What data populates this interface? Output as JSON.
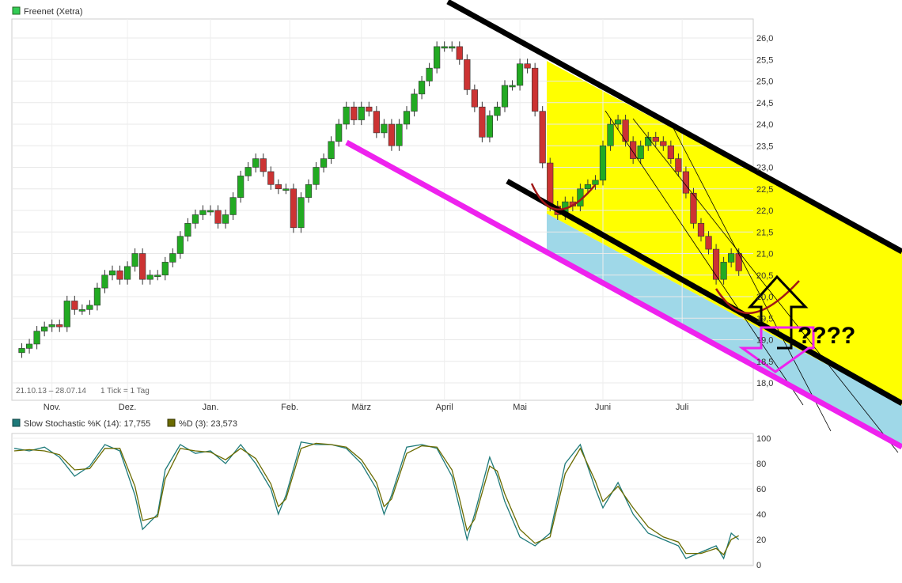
{
  "chart_data": [
    {
      "type": "candlestick",
      "title": "Freenet (Xetra)",
      "date_range": "21.10.13 – 28.07.14",
      "interval": "1 Tick = 1 Tag",
      "ylim": [
        17.85,
        26.3
      ],
      "y_ticks": [
        "26,0",
        "25,5",
        "25,0",
        "24,5",
        "24,0",
        "23,5",
        "23,0",
        "22,5",
        "22,0",
        "21,5",
        "21,0",
        "20,5",
        "20,0",
        "19,5",
        "19,0",
        "18,5",
        "18,0"
      ],
      "x_ticks": [
        {
          "label": "Nov.",
          "x": 10
        },
        {
          "label": "Dez.",
          "x": 30
        },
        {
          "label": "Jan.",
          "x": 52
        },
        {
          "label": "Feb.",
          "x": 73
        },
        {
          "label": "März",
          "x": 92
        },
        {
          "label": "April",
          "x": 114
        },
        {
          "label": "Mai",
          "x": 134
        },
        {
          "label": "Juni",
          "x": 156
        },
        {
          "label": "Juli",
          "x": 177
        }
      ],
      "x_range": [
        0,
        195
      ],
      "close_path": [
        [
          0,
          18.7
        ],
        [
          2,
          18.8
        ],
        [
          4,
          18.9
        ],
        [
          6,
          19.2
        ],
        [
          8,
          19.3
        ],
        [
          10,
          19.35
        ],
        [
          12,
          19.3
        ],
        [
          14,
          19.9
        ],
        [
          16,
          19.7
        ],
        [
          18,
          19.7
        ],
        [
          20,
          19.8
        ],
        [
          22,
          20.2
        ],
        [
          24,
          20.5
        ],
        [
          26,
          20.6
        ],
        [
          28,
          20.4
        ],
        [
          30,
          20.7
        ],
        [
          32,
          21.0
        ],
        [
          34,
          20.4
        ],
        [
          36,
          20.5
        ],
        [
          38,
          20.5
        ],
        [
          40,
          20.8
        ],
        [
          42,
          21.0
        ],
        [
          44,
          21.4
        ],
        [
          46,
          21.7
        ],
        [
          48,
          21.9
        ],
        [
          50,
          22.0
        ],
        [
          52,
          22.0
        ],
        [
          54,
          21.7
        ],
        [
          56,
          21.9
        ],
        [
          58,
          22.3
        ],
        [
          60,
          22.8
        ],
        [
          62,
          23.0
        ],
        [
          64,
          23.2
        ],
        [
          66,
          22.9
        ],
        [
          68,
          22.6
        ],
        [
          70,
          22.5
        ],
        [
          72,
          22.5
        ],
        [
          74,
          21.6
        ],
        [
          76,
          22.3
        ],
        [
          78,
          22.6
        ],
        [
          80,
          23.0
        ],
        [
          82,
          23.2
        ],
        [
          84,
          23.6
        ],
        [
          86,
          24.0
        ],
        [
          88,
          24.4
        ],
        [
          90,
          24.1
        ],
        [
          92,
          24.4
        ],
        [
          94,
          24.3
        ],
        [
          96,
          23.8
        ],
        [
          98,
          24.0
        ],
        [
          100,
          23.5
        ],
        [
          102,
          24.0
        ],
        [
          104,
          24.3
        ],
        [
          106,
          24.7
        ],
        [
          108,
          25.0
        ],
        [
          110,
          25.3
        ],
        [
          112,
          25.8
        ],
        [
          114,
          25.8
        ],
        [
          116,
          25.8
        ],
        [
          118,
          25.5
        ],
        [
          120,
          24.8
        ],
        [
          122,
          24.4
        ],
        [
          124,
          23.7
        ],
        [
          126,
          24.2
        ],
        [
          128,
          24.4
        ],
        [
          130,
          24.9
        ],
        [
          132,
          24.9
        ],
        [
          134,
          25.4
        ],
        [
          136,
          25.3
        ],
        [
          138,
          24.3
        ],
        [
          140,
          23.1
        ],
        [
          142,
          22.1
        ],
        [
          144,
          21.9
        ],
        [
          146,
          22.2
        ],
        [
          148,
          22.1
        ],
        [
          150,
          22.5
        ],
        [
          152,
          22.6
        ],
        [
          154,
          22.7
        ],
        [
          156,
          23.5
        ],
        [
          158,
          24.0
        ],
        [
          160,
          24.1
        ],
        [
          162,
          23.6
        ],
        [
          164,
          23.2
        ],
        [
          166,
          23.5
        ],
        [
          168,
          23.7
        ],
        [
          170,
          23.6
        ],
        [
          172,
          23.5
        ],
        [
          174,
          23.2
        ],
        [
          176,
          22.9
        ],
        [
          178,
          22.4
        ],
        [
          180,
          21.7
        ],
        [
          182,
          21.4
        ],
        [
          184,
          21.1
        ],
        [
          186,
          20.4
        ],
        [
          188,
          20.8
        ],
        [
          190,
          21.0
        ],
        [
          192,
          20.6
        ]
      ],
      "channel_zone_yellow": {
        "x_start": 138,
        "color": "#ffff00"
      },
      "channel_zone_blue": {
        "x_start": 138,
        "color": "#9fd8e8"
      },
      "annotations": {
        "question_text": "????"
      },
      "colors": {
        "up": "#22aa22",
        "down": "#cc3333",
        "trend_black": "#000000",
        "trend_magenta": "#ee22ee",
        "arc": "#a01818"
      }
    },
    {
      "type": "line",
      "title": "Slow Stochastic",
      "ylim": [
        0,
        100
      ],
      "y_ticks": [
        "100",
        "80",
        "60",
        "40",
        "20",
        "0"
      ],
      "series": [
        {
          "name": "Slow Stochastic %K (14): 17,755",
          "color": "#1e7a7a",
          "values": [
            [
              0,
              92
            ],
            [
              4,
              90
            ],
            [
              8,
              93
            ],
            [
              12,
              85
            ],
            [
              16,
              70
            ],
            [
              20,
              78
            ],
            [
              24,
              95
            ],
            [
              28,
              90
            ],
            [
              32,
              55
            ],
            [
              34,
              28
            ],
            [
              38,
              40
            ],
            [
              40,
              75
            ],
            [
              44,
              95
            ],
            [
              48,
              88
            ],
            [
              52,
              90
            ],
            [
              56,
              80
            ],
            [
              60,
              95
            ],
            [
              64,
              80
            ],
            [
              68,
              60
            ],
            [
              70,
              40
            ],
            [
              72,
              55
            ],
            [
              76,
              97
            ],
            [
              80,
              95
            ],
            [
              84,
              95
            ],
            [
              88,
              92
            ],
            [
              92,
              80
            ],
            [
              96,
              60
            ],
            [
              98,
              40
            ],
            [
              100,
              55
            ],
            [
              104,
              93
            ],
            [
              108,
              95
            ],
            [
              112,
              92
            ],
            [
              116,
              70
            ],
            [
              118,
              45
            ],
            [
              120,
              20
            ],
            [
              122,
              40
            ],
            [
              126,
              85
            ],
            [
              128,
              70
            ],
            [
              130,
              50
            ],
            [
              134,
              22
            ],
            [
              138,
              15
            ],
            [
              142,
              25
            ],
            [
              146,
              80
            ],
            [
              150,
              95
            ],
            [
              154,
              60
            ],
            [
              156,
              45
            ],
            [
              160,
              65
            ],
            [
              164,
              40
            ],
            [
              168,
              25
            ],
            [
              172,
              20
            ],
            [
              176,
              15
            ],
            [
              178,
              5
            ],
            [
              182,
              10
            ],
            [
              186,
              15
            ],
            [
              188,
              5
            ],
            [
              190,
              25
            ],
            [
              192,
              20
            ]
          ]
        },
        {
          "name": "%D (3): 23,573",
          "color": "#6b6b00",
          "values": [
            [
              0,
              90
            ],
            [
              4,
              91
            ],
            [
              8,
              90
            ],
            [
              12,
              87
            ],
            [
              16,
              75
            ],
            [
              20,
              76
            ],
            [
              24,
              92
            ],
            [
              28,
              92
            ],
            [
              32,
              62
            ],
            [
              34,
              35
            ],
            [
              38,
              38
            ],
            [
              40,
              68
            ],
            [
              44,
              92
            ],
            [
              48,
              90
            ],
            [
              52,
              89
            ],
            [
              56,
              83
            ],
            [
              60,
              92
            ],
            [
              64,
              84
            ],
            [
              68,
              64
            ],
            [
              70,
              46
            ],
            [
              72,
              52
            ],
            [
              76,
              92
            ],
            [
              80,
              96
            ],
            [
              84,
              95
            ],
            [
              88,
              93
            ],
            [
              92,
              83
            ],
            [
              96,
              65
            ],
            [
              98,
              46
            ],
            [
              100,
              52
            ],
            [
              104,
              88
            ],
            [
              108,
              94
            ],
            [
              112,
              93
            ],
            [
              116,
              75
            ],
            [
              118,
              52
            ],
            [
              120,
              27
            ],
            [
              122,
              36
            ],
            [
              126,
              78
            ],
            [
              128,
              74
            ],
            [
              130,
              56
            ],
            [
              134,
              28
            ],
            [
              138,
              17
            ],
            [
              142,
              22
            ],
            [
              146,
              72
            ],
            [
              150,
              92
            ],
            [
              154,
              66
            ],
            [
              156,
              50
            ],
            [
              160,
              62
            ],
            [
              164,
              45
            ],
            [
              168,
              30
            ],
            [
              172,
              22
            ],
            [
              176,
              18
            ],
            [
              178,
              9
            ],
            [
              182,
              9
            ],
            [
              186,
              13
            ],
            [
              188,
              8
            ],
            [
              190,
              20
            ],
            [
              192,
              23
            ]
          ]
        }
      ]
    }
  ]
}
